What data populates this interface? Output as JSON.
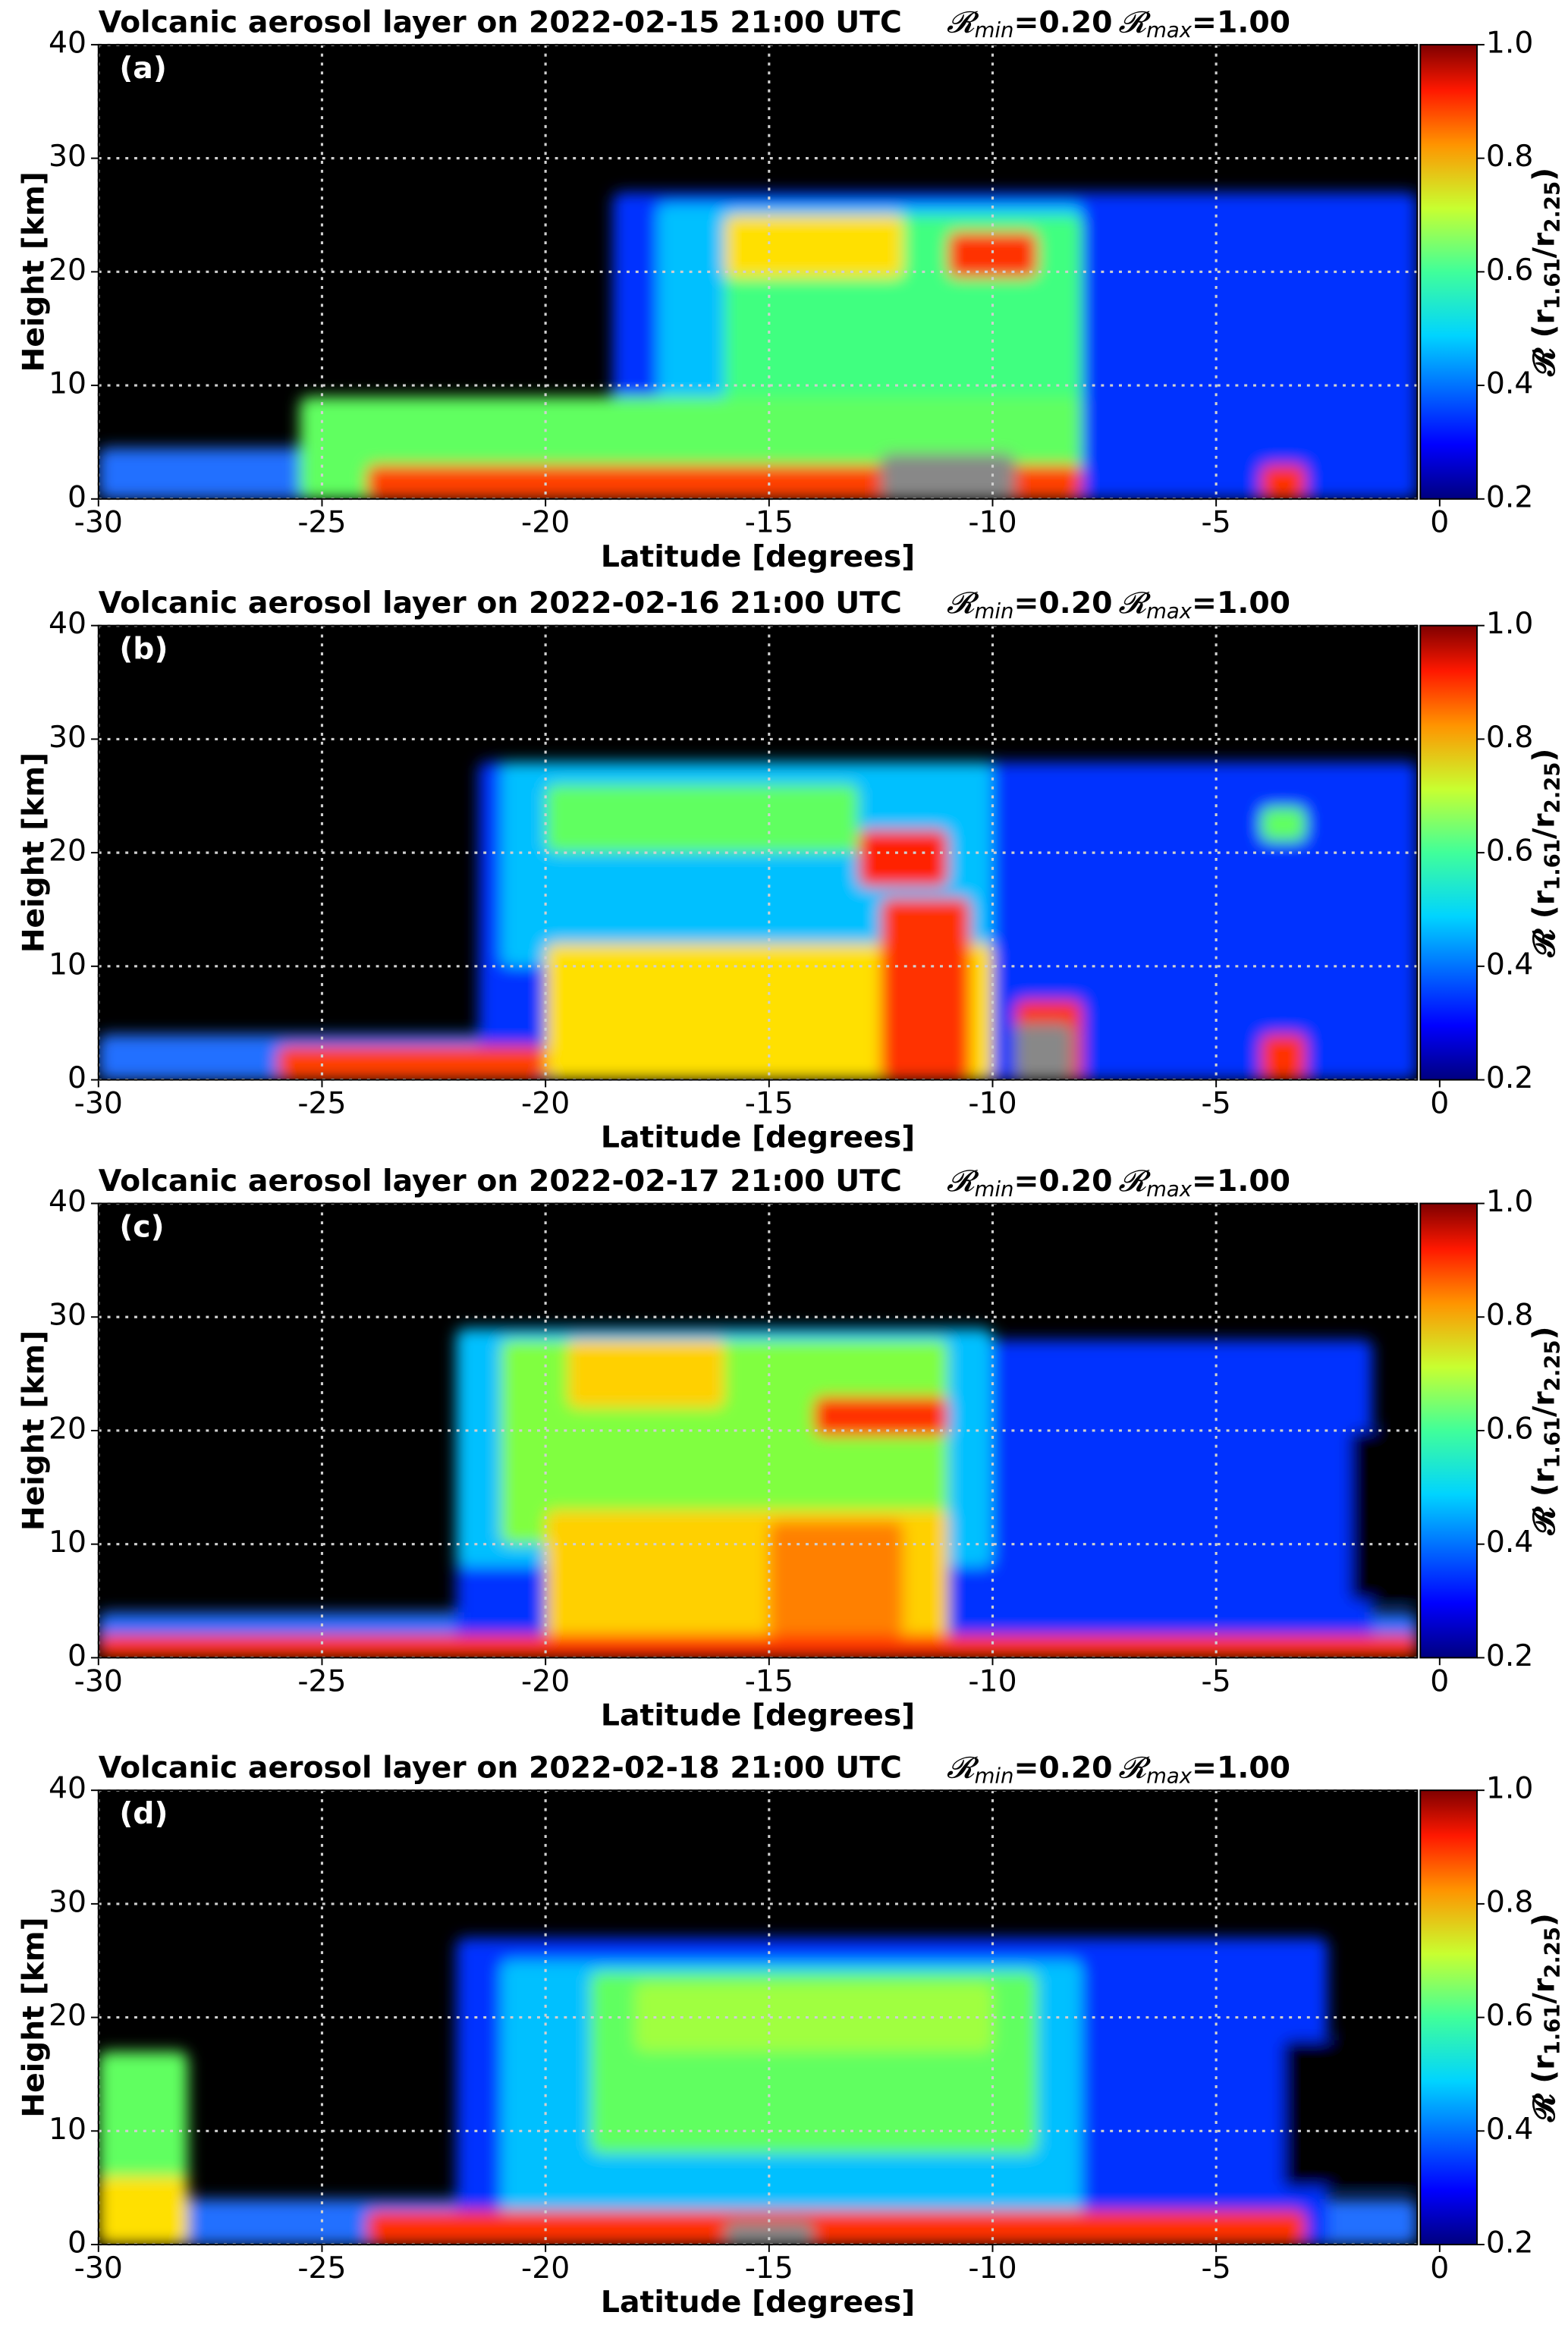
{
  "chart_data": [
    {
      "type": "heatmap",
      "title": "Volcanic aerosol layer on 2022-02-15 21:00 UTC",
      "r_range": [
        {
          "symbol": "𝓡",
          "subscript": "min",
          "label": "=0.20"
        },
        {
          "symbol": "𝓡",
          "subscript": "max",
          "label": "=1.00"
        }
      ],
      "panel_label": "(a)",
      "x_label": "Latitude [degrees]",
      "y_label": "Height [km]",
      "xlim": [
        -30,
        -0.5
      ],
      "ylim": [
        0,
        40
      ],
      "xticks": [
        -30,
        -25,
        -20,
        -15,
        -10,
        -5,
        0
      ],
      "yticks": [
        0,
        10,
        20,
        30,
        40
      ],
      "grid": true,
      "colormap": "jet",
      "colorbar": {
        "clim": [
          0.2,
          1
        ],
        "ticks": [
          0.2,
          0.4,
          0.6,
          0.8,
          {
            "value": 1,
            "label": "1.0"
          }
        ],
        "label": [
          "𝓡 (r",
          "1.61",
          "/r",
          "2.25",
          ")"
        ]
      }
    },
    {
      "type": "heatmap",
      "title": "Volcanic aerosol layer on 2022-02-16 21:00 UTC",
      "r_range": [
        {
          "symbol": "𝓡",
          "subscript": "min",
          "label": "=0.20"
        },
        {
          "symbol": "𝓡",
          "subscript": "max",
          "label": "=1.00"
        }
      ],
      "panel_label": "(b)",
      "x_label": "Latitude [degrees]",
      "y_label": "Height [km]",
      "xlim": [
        -30,
        -0.5
      ],
      "ylim": [
        0,
        40
      ],
      "xticks": [
        -30,
        -25,
        -20,
        -15,
        -10,
        -5,
        0
      ],
      "yticks": [
        0,
        10,
        20,
        30,
        40
      ],
      "grid": true,
      "colormap": "jet",
      "colorbar": {
        "clim": [
          0.2,
          1
        ],
        "ticks": [
          0.2,
          0.4,
          0.6,
          0.8,
          {
            "value": 1,
            "label": "1.0"
          }
        ],
        "label": [
          "𝓡 (r",
          "1.61",
          "/r",
          "2.25",
          ")"
        ]
      }
    },
    {
      "type": "heatmap",
      "title": "Volcanic aerosol layer on 2022-02-17 21:00 UTC",
      "r_range": [
        {
          "symbol": "𝓡",
          "subscript": "min",
          "label": "=0.20"
        },
        {
          "symbol": "𝓡",
          "subscript": "max",
          "label": "=1.00"
        }
      ],
      "panel_label": "(c)",
      "x_label": "Latitude [degrees]",
      "y_label": "Height [km]",
      "xlim": [
        -30,
        -0.5
      ],
      "ylim": [
        0,
        40
      ],
      "xticks": [
        -30,
        -25,
        -20,
        -15,
        -10,
        -5,
        0
      ],
      "yticks": [
        0,
        10,
        20,
        30,
        40
      ],
      "grid": true,
      "colormap": "jet",
      "colorbar": {
        "clim": [
          0.2,
          1
        ],
        "ticks": [
          0.2,
          0.4,
          0.6,
          0.8,
          {
            "value": 1,
            "label": "1.0"
          }
        ],
        "label": [
          "𝓡 (r",
          "1.61",
          "/r",
          "2.25",
          ")"
        ]
      }
    },
    {
      "type": "heatmap",
      "title": "Volcanic aerosol layer on 2022-02-18 21:00 UTC",
      "r_range": [
        {
          "symbol": "𝓡",
          "subscript": "min",
          "label": "=0.20"
        },
        {
          "symbol": "𝓡",
          "subscript": "max",
          "label": "=1.00"
        }
      ],
      "panel_label": "(d)",
      "x_label": "Latitude [degrees]",
      "y_label": "Height [km]",
      "xlim": [
        -30,
        -0.5
      ],
      "ylim": [
        0,
        40
      ],
      "xticks": [
        -30,
        -25,
        -20,
        -15,
        -10,
        -5,
        0
      ],
      "yticks": [
        0,
        10,
        20,
        30,
        40
      ],
      "grid": true,
      "colormap": "jet",
      "colorbar": {
        "clim": [
          0.2,
          1
        ],
        "ticks": [
          0.2,
          0.4,
          0.6,
          0.8,
          {
            "value": 1,
            "label": "1.0"
          }
        ],
        "label": [
          "𝓡 (r",
          "1.61",
          "/r",
          "2.25",
          ")"
        ]
      }
    }
  ]
}
